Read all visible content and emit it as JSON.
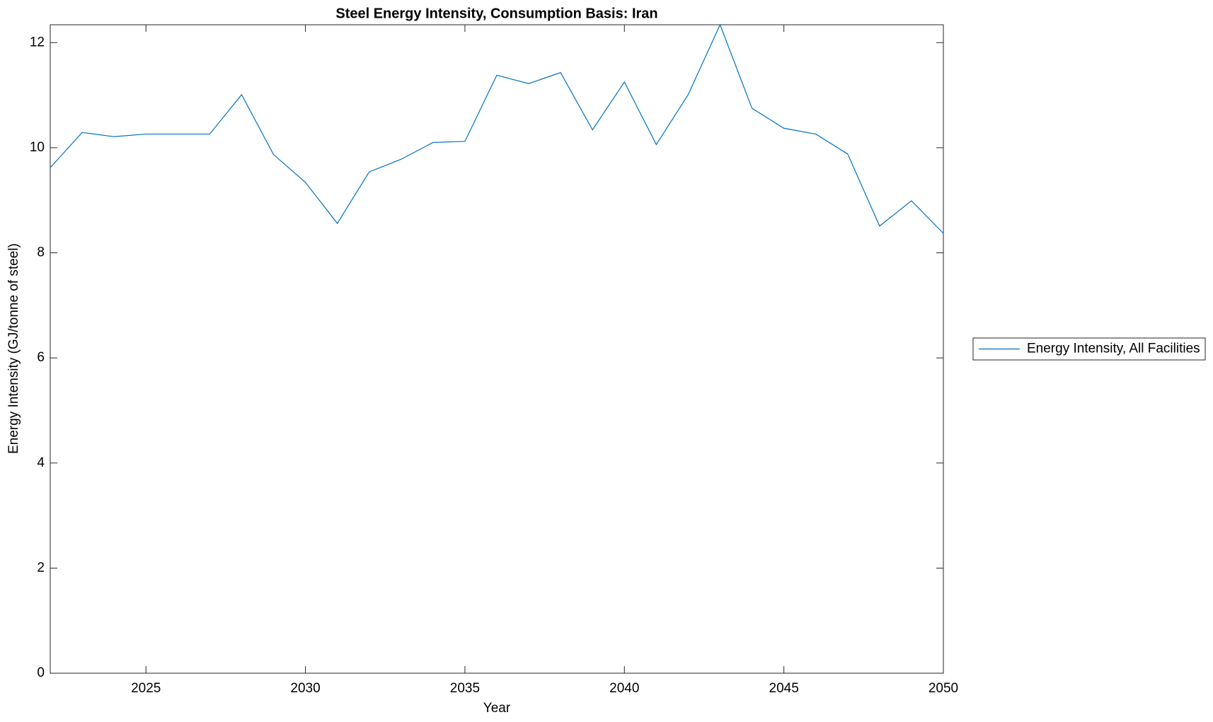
{
  "chart_data": {
    "type": "line",
    "title": "Steel Energy Intensity, Consumption Basis: Iran",
    "x_label": "Year",
    "y_label": "Energy Intensity (GJ/tonne of steel)",
    "x": [
      2022,
      2023,
      2024,
      2025,
      2026,
      2027,
      2028,
      2029,
      2030,
      2031,
      2032,
      2033,
      2034,
      2035,
      2036,
      2037,
      2038,
      2039,
      2040,
      2041,
      2042,
      2043,
      2044,
      2045,
      2046,
      2047,
      2048,
      2049,
      2050
    ],
    "series": [
      {
        "name": "Energy Intensity, All Facilities",
        "color": "#0072bd",
        "values": [
          9.62,
          10.29,
          10.21,
          10.26,
          10.26,
          10.26,
          11.01,
          9.87,
          9.34,
          8.56,
          9.54,
          9.78,
          10.1,
          10.12,
          11.38,
          11.22,
          11.43,
          10.34,
          11.25,
          10.06,
          11.01,
          12.34,
          10.75,
          10.37,
          10.26,
          9.88,
          8.51,
          8.99,
          8.37
        ]
      }
    ],
    "xlim": [
      2022,
      2050
    ],
    "xticks": [
      2025,
      2030,
      2035,
      2040,
      2045,
      2050
    ],
    "ylim": [
      0,
      12.34
    ],
    "yticks": [
      0,
      2,
      4,
      6,
      8,
      10,
      12
    ],
    "grid": false,
    "legend": "outside-right"
  }
}
